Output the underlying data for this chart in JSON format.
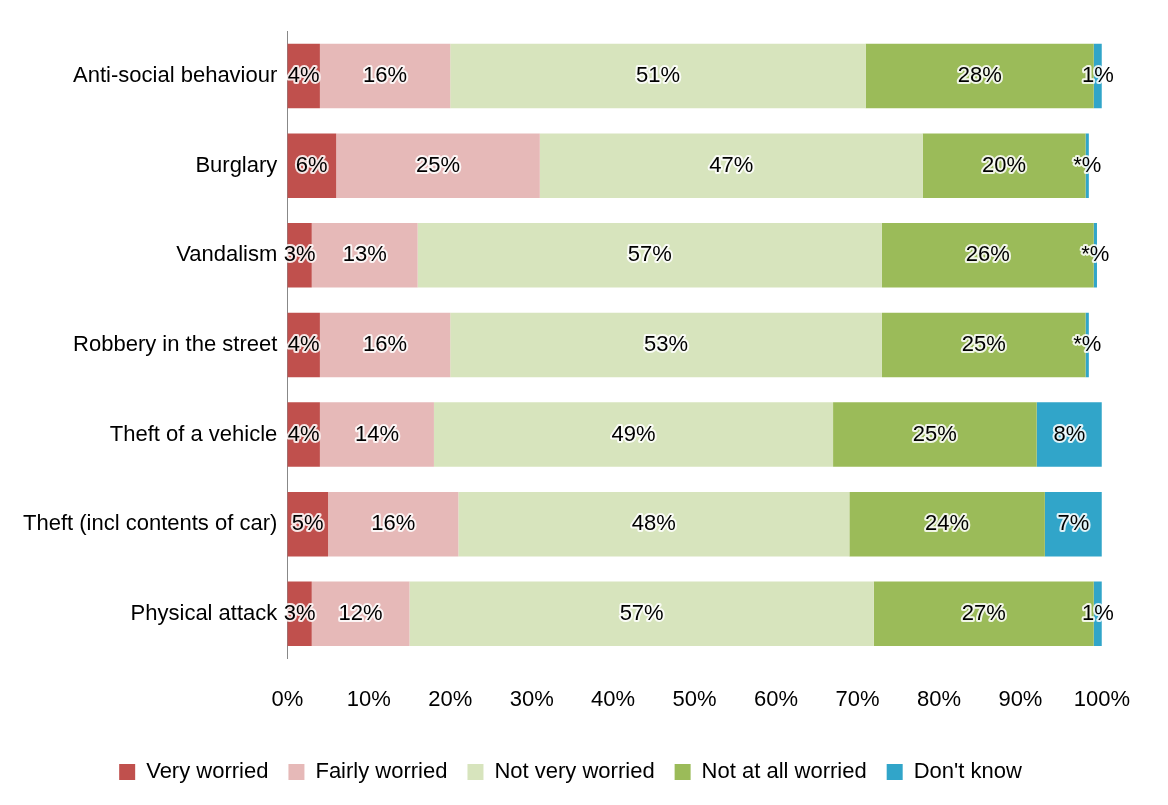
{
  "chart_data": {
    "type": "bar",
    "orientation": "horizontal",
    "stacked": true,
    "categories": [
      "Anti-social behaviour",
      "Burglary",
      "Vandalism",
      "Robbery in the street",
      "Theft of a vehicle",
      "Theft (incl contents of car)",
      "Physical attack"
    ],
    "series": [
      {
        "name": "Very worried",
        "color": "#c0504d",
        "values": [
          4,
          6,
          3,
          4,
          4,
          5,
          3
        ],
        "value_labels": [
          "4%",
          "6%",
          "3%",
          "4%",
          "4%",
          "5%",
          "3%"
        ]
      },
      {
        "name": "Fairly worried",
        "color": "#e6b9b8",
        "values": [
          16,
          25,
          13,
          16,
          14,
          16,
          12
        ],
        "value_labels": [
          "16%",
          "25%",
          "13%",
          "16%",
          "14%",
          "16%",
          "12%"
        ]
      },
      {
        "name": "Not very worried",
        "color": "#d7e4bd",
        "values": [
          51,
          47,
          57,
          53,
          49,
          48,
          57
        ],
        "value_labels": [
          "51%",
          "47%",
          "57%",
          "53%",
          "49%",
          "48%",
          "57%"
        ]
      },
      {
        "name": "Not at all worried",
        "color": "#9bbb59",
        "values": [
          28,
          20,
          26,
          25,
          25,
          24,
          27
        ],
        "value_labels": [
          "28%",
          "20%",
          "26%",
          "25%",
          "25%",
          "24%",
          "27%"
        ]
      },
      {
        "name": "Don't know",
        "color": "#31a5c9",
        "values": [
          1,
          0.4,
          0.4,
          0.4,
          8,
          7,
          1
        ],
        "value_labels": [
          "1%",
          "*%",
          "*%",
          "*%",
          "8%",
          "7%",
          "1%"
        ]
      }
    ],
    "xlim": [
      0,
      100
    ],
    "xticks": [
      {
        "value": 0,
        "label": "0%"
      },
      {
        "value": 10,
        "label": "10%"
      },
      {
        "value": 20,
        "label": "20%"
      },
      {
        "value": 30,
        "label": "30%"
      },
      {
        "value": 40,
        "label": "40%"
      },
      {
        "value": 50,
        "label": "50%"
      },
      {
        "value": 60,
        "label": "60%"
      },
      {
        "value": 70,
        "label": "70%"
      },
      {
        "value": 80,
        "label": "80%"
      },
      {
        "value": 90,
        "label": "90%"
      },
      {
        "value": 100,
        "label": "100%"
      }
    ],
    "grid": false,
    "legend": "bottom"
  }
}
